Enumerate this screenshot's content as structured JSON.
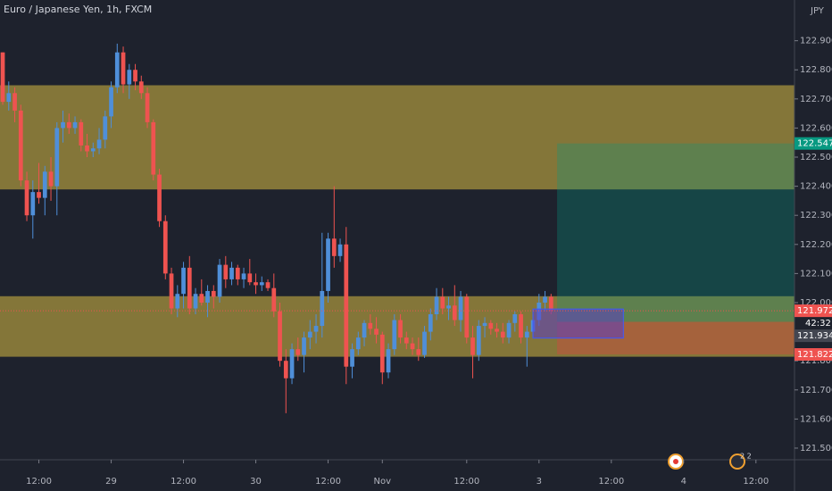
{
  "chart_data": {
    "type": "candlestick",
    "title": "Euro / Japanese Yen, 1h, FXCM",
    "currency": "JPY",
    "up_color": "#4f8fd9",
    "down_color": "#ef5350",
    "open": [
      122.86,
      122.69,
      122.72,
      122.66,
      122.42,
      122.3,
      122.38,
      122.36,
      122.45,
      122.4,
      122.6,
      122.62,
      122.6,
      122.62,
      122.54,
      122.52,
      122.53,
      122.56,
      122.64,
      122.74,
      122.86,
      122.75,
      122.8,
      122.76,
      122.72,
      122.62,
      122.44,
      122.28,
      122.1,
      121.98,
      122.03,
      122.12,
      121.98,
      122.03,
      122.0,
      122.04,
      122.02,
      122.13,
      122.08,
      122.12,
      122.08,
      122.1,
      122.07,
      122.06,
      122.07,
      122.05,
      121.97,
      121.8,
      121.74,
      121.84,
      121.82,
      121.88,
      121.9,
      121.92,
      122.04,
      122.22,
      122.16,
      122.2,
      121.78,
      121.84,
      121.88,
      121.93,
      121.91,
      121.89,
      121.76,
      121.84,
      121.94,
      121.88,
      121.86,
      121.84,
      121.82,
      121.9,
      121.96,
      122.02,
      121.98,
      121.99,
      121.94,
      122.02,
      121.88,
      121.82,
      121.92,
      121.93,
      121.91,
      121.9,
      121.88,
      121.93,
      121.96,
      121.88,
      121.9,
      121.94,
      122.0,
      122.02
    ],
    "high": [
      122.86,
      122.76,
      122.74,
      122.68,
      122.45,
      122.42,
      122.48,
      122.47,
      122.5,
      122.62,
      122.66,
      122.65,
      122.64,
      122.63,
      122.58,
      122.55,
      122.6,
      122.66,
      122.76,
      122.89,
      122.88,
      122.82,
      122.82,
      122.78,
      122.74,
      122.63,
      122.46,
      122.3,
      122.12,
      122.06,
      122.14,
      122.16,
      122.05,
      122.08,
      122.06,
      122.06,
      122.15,
      122.16,
      122.14,
      122.13,
      122.12,
      122.15,
      122.1,
      122.09,
      122.08,
      122.1,
      122.0,
      121.84,
      121.86,
      121.88,
      121.9,
      121.94,
      121.96,
      122.24,
      122.24,
      122.4,
      122.22,
      122.26,
      121.86,
      121.9,
      121.94,
      121.96,
      121.95,
      121.9,
      121.86,
      121.96,
      121.96,
      121.9,
      121.88,
      121.88,
      121.92,
      121.98,
      122.05,
      122.05,
      122.02,
      122.06,
      122.04,
      122.03,
      121.92,
      121.94,
      121.95,
      121.94,
      121.93,
      121.93,
      121.94,
      121.97,
      121.97,
      121.92,
      121.96,
      122.03,
      122.04,
      122.03
    ],
    "low": [
      122.68,
      122.66,
      122.62,
      122.4,
      122.28,
      122.22,
      122.34,
      122.3,
      122.35,
      122.3,
      122.55,
      122.58,
      122.58,
      122.52,
      122.5,
      122.5,
      122.51,
      122.53,
      122.6,
      122.72,
      122.72,
      122.7,
      122.73,
      122.7,
      122.6,
      122.42,
      122.26,
      122.08,
      121.96,
      121.95,
      121.98,
      121.96,
      121.96,
      121.99,
      121.95,
      121.98,
      122.0,
      122.05,
      122.06,
      122.06,
      122.05,
      122.06,
      122.03,
      122.04,
      122.04,
      121.95,
      121.78,
      121.62,
      121.72,
      121.8,
      121.76,
      121.84,
      121.86,
      121.88,
      122.0,
      122.12,
      122.14,
      121.72,
      121.74,
      121.82,
      121.85,
      121.89,
      121.86,
      121.72,
      121.74,
      121.82,
      121.86,
      121.84,
      121.82,
      121.8,
      121.81,
      121.87,
      121.94,
      121.96,
      121.94,
      121.92,
      121.9,
      121.86,
      121.74,
      121.8,
      121.88,
      121.89,
      121.88,
      121.86,
      121.86,
      121.9,
      121.86,
      121.78,
      121.88,
      121.92,
      121.97,
      121.96
    ],
    "close": [
      122.69,
      122.72,
      122.66,
      122.42,
      122.3,
      122.38,
      122.36,
      122.45,
      122.4,
      122.6,
      122.62,
      122.6,
      122.62,
      122.54,
      122.52,
      122.53,
      122.56,
      122.64,
      122.74,
      122.86,
      122.75,
      122.8,
      122.76,
      122.72,
      122.62,
      122.44,
      122.28,
      122.1,
      121.98,
      122.03,
      122.12,
      121.98,
      122.03,
      122.0,
      122.04,
      122.02,
      122.13,
      122.08,
      122.12,
      122.08,
      122.1,
      122.07,
      122.06,
      122.07,
      122.05,
      121.97,
      121.8,
      121.74,
      121.84,
      121.82,
      121.88,
      121.9,
      121.92,
      122.04,
      122.22,
      122.16,
      122.2,
      121.78,
      121.84,
      121.88,
      121.93,
      121.91,
      121.89,
      121.76,
      121.84,
      121.94,
      121.88,
      121.86,
      121.84,
      121.82,
      121.9,
      121.96,
      122.02,
      121.98,
      121.99,
      121.94,
      122.02,
      121.88,
      121.82,
      121.92,
      121.93,
      121.91,
      121.9,
      121.88,
      121.93,
      121.96,
      121.88,
      121.9,
      121.94,
      122.0,
      122.02,
      121.972
    ],
    "xlim": [
      -0.45,
      131.4
    ],
    "xticks": [
      {
        "value": 6,
        "label": "12:00"
      },
      {
        "value": 18,
        "label": "29"
      },
      {
        "value": 30,
        "label": "12:00"
      },
      {
        "value": 42,
        "label": "30"
      },
      {
        "value": 54,
        "label": "12:00"
      },
      {
        "value": 63,
        "label": "Nov"
      },
      {
        "value": 77,
        "label": "12:00"
      },
      {
        "value": 89,
        "label": "3"
      },
      {
        "value": 101,
        "label": "12:00"
      },
      {
        "value": 113,
        "label": "4"
      },
      {
        "value": 125,
        "label": "12:00"
      }
    ],
    "ylim": [
      121.46,
      123.04
    ],
    "yticks": [
      {
        "value": 122.9,
        "label": "122.900"
      },
      {
        "value": 122.8,
        "label": "122.800"
      },
      {
        "value": 122.7,
        "label": "122.700"
      },
      {
        "value": 122.6,
        "label": "122.600"
      },
      {
        "value": 122.5,
        "label": "122.500"
      },
      {
        "value": 122.4,
        "label": "122.400"
      },
      {
        "value": 122.3,
        "label": "122.300"
      },
      {
        "value": 122.2,
        "label": "122.200"
      },
      {
        "value": 122.1,
        "label": "122.100"
      },
      {
        "value": 122.0,
        "label": "122.000"
      },
      {
        "value": 121.8,
        "label": "121.800"
      },
      {
        "value": 121.7,
        "label": "121.700"
      },
      {
        "value": 121.6,
        "label": "121.600"
      },
      {
        "value": 121.5,
        "label": "121.500"
      }
    ],
    "zones": [
      {
        "top": 122.747,
        "bottom": 122.389
      },
      {
        "top": 122.022,
        "bottom": 121.814
      }
    ],
    "position": {
      "start": 92,
      "target": 122.547,
      "entry": 121.934,
      "stop": 121.822
    },
    "box": {
      "x": [
        88,
        103
      ],
      "y": [
        121.878,
        121.978
      ]
    },
    "last_price": 121.972,
    "countdown": "42:32",
    "event_badge": "2 2"
  }
}
